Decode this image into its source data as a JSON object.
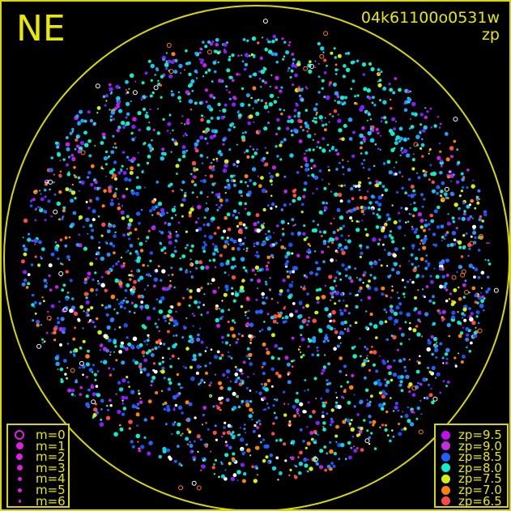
{
  "direction_label": "NE",
  "frame_id": "04k61100o0531w",
  "color_mode": "zp",
  "horizon_color": "#d8d800",
  "magnitude_legend": [
    {
      "label": "m=0",
      "marker": "ring"
    },
    {
      "label": "m=1",
      "marker": "dot"
    },
    {
      "label": "m=2",
      "marker": "dot"
    },
    {
      "label": "m=3",
      "marker": "dot"
    },
    {
      "label": "m=4",
      "marker": "dot"
    },
    {
      "label": "m=5",
      "marker": "dot"
    },
    {
      "label": "m=6",
      "marker": "dot"
    }
  ],
  "magnitude_legend_color": "#e020e0",
  "zp_legend": [
    {
      "label": "zp=9.5",
      "color": "#c010f0"
    },
    {
      "label": "zp=9.0",
      "color": "#c030e0"
    },
    {
      "label": "zp=8.5",
      "color": "#2060ff"
    },
    {
      "label": "zp=8.0",
      "color": "#10f0c8"
    },
    {
      "label": "zp=7.5",
      "color": "#d0f010"
    },
    {
      "label": "zp=7.0",
      "color": "#ff8010"
    },
    {
      "label": "zp=6.5",
      "color": "#ff4848"
    }
  ]
}
